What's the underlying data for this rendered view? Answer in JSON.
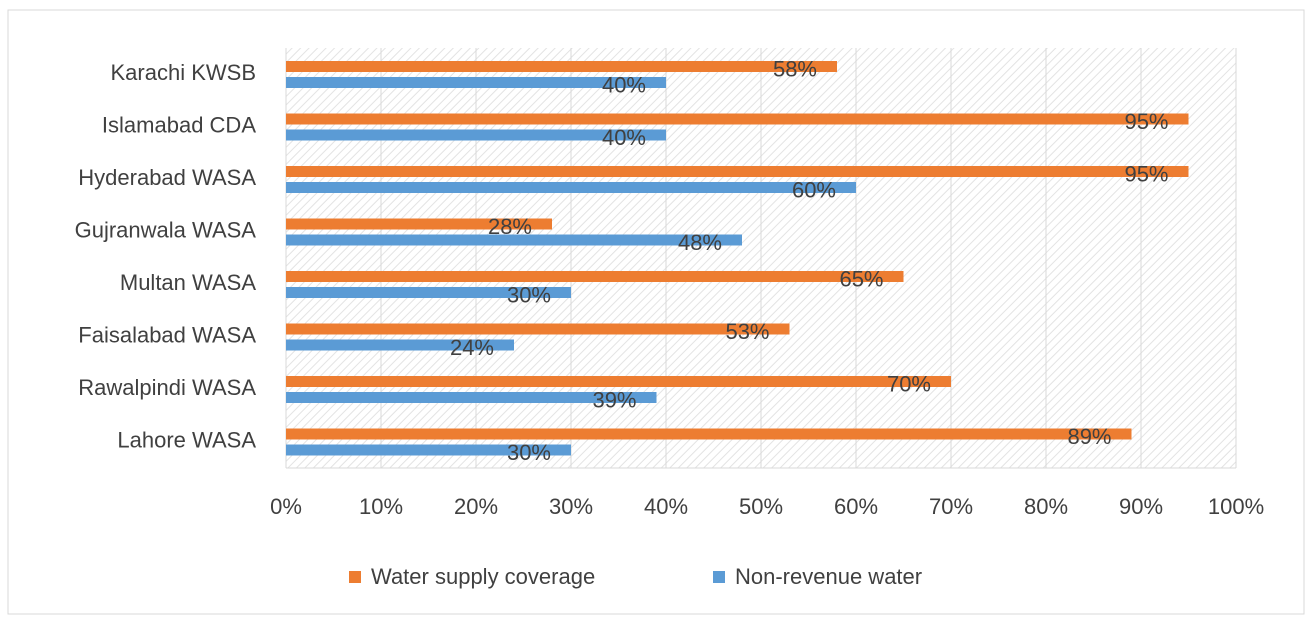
{
  "chart_data": {
    "type": "hbar",
    "categories": [
      "Karachi KWSB",
      "Islamabad CDA",
      "Hyderabad WASA",
      "Gujranwala WASA",
      "Multan WASA",
      "Faisalabad WASA",
      "Rawalpindi WASA",
      "Lahore WASA"
    ],
    "series": [
      {
        "name": "Water supply coverage",
        "color": "#ED7D31",
        "values": [
          58,
          95,
          95,
          28,
          65,
          53,
          70,
          89
        ],
        "value_labels": [
          "58%",
          "95%",
          "95%",
          "28%",
          "65%",
          "53%",
          "70%",
          "89%"
        ]
      },
      {
        "name": "Non-revenue water",
        "color": "#5B9BD5",
        "values": [
          40,
          40,
          60,
          48,
          30,
          24,
          39,
          30
        ],
        "value_labels": [
          "40%",
          "40%",
          "60%",
          "48%",
          "30%",
          "24%",
          "39%",
          "30%"
        ]
      }
    ],
    "xlim": [
      0,
      100
    ],
    "xticks": [
      {
        "value": 0,
        "label": "0%"
      },
      {
        "value": 10,
        "label": "10%"
      },
      {
        "value": 20,
        "label": "20%"
      },
      {
        "value": 30,
        "label": "30%"
      },
      {
        "value": 40,
        "label": "40%"
      },
      {
        "value": 50,
        "label": "50%"
      },
      {
        "value": 60,
        "label": "60%"
      },
      {
        "value": 70,
        "label": "70%"
      },
      {
        "value": 80,
        "label": "80%"
      },
      {
        "value": 90,
        "label": "90%"
      },
      {
        "value": 100,
        "label": "100%"
      }
    ],
    "grid": true,
    "legend": "bottom"
  }
}
